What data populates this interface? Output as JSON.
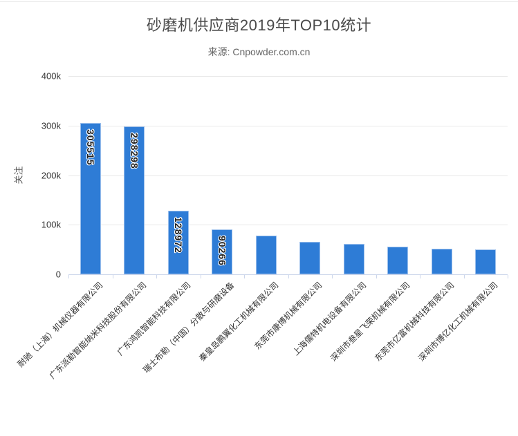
{
  "chart_data": {
    "type": "bar",
    "title": "砂磨机供应商2019年TOP10统计",
    "subtitle": "来源: Cnpowder.com.cn",
    "ylabel": "关注",
    "xlabel": "",
    "ylim": [
      0,
      400000
    ],
    "yticks": [
      {
        "value": 0,
        "label": "0"
      },
      {
        "value": 100000,
        "label": "100k"
      },
      {
        "value": 200000,
        "label": "200k"
      },
      {
        "value": 300000,
        "label": "300k"
      },
      {
        "value": 400000,
        "label": "400k"
      }
    ],
    "grid": "horizontal-on",
    "legend": "none",
    "categories": [
      "耐驰（上海）机械仪器有限公司",
      "广东派勒智能纳米科技股份有限公司",
      "广东鸿凯智能科技有限公司",
      "瑞士布勒（中国）分散与研磨设备",
      "秦皇岛鹏翼化工机械有限公司",
      "东莞市康博机械有限公司",
      "上海儒特机电设备有限公司",
      "深圳市叁星飞荣机械有限公司",
      "东莞市亿富机械科技有限公司",
      "深圳市博亿化工机械有限公司"
    ],
    "values": [
      305515,
      298298,
      128972,
      90266,
      78000,
      65000,
      62000,
      56000,
      51000,
      50000
    ],
    "data_labels": [
      "305515",
      "298298",
      "128972",
      "90266",
      "",
      "",
      "",
      "",
      "",
      ""
    ],
    "colors": {
      "bar_fill": "#2e7cd6",
      "bar_border": "#9bbfec",
      "gridline": "#e8e8e8",
      "axis_line": "#ccd6eb",
      "title": "#4a4a4a",
      "subtitle": "#666666",
      "tick_label": "#333333",
      "value_label": "#222222",
      "ylabel_color": "#555555"
    }
  }
}
